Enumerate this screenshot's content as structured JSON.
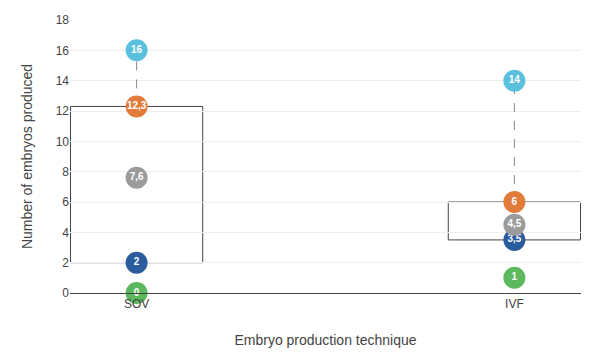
{
  "chart_data": {
    "type": "box",
    "xlabel": "Embryo production technique",
    "ylabel": "Number of embryos produced",
    "categories": [
      "SOV",
      "IVF"
    ],
    "box": {
      "q1": [
        2,
        3.5
      ],
      "q3": [
        12.3,
        6
      ],
      "max": [
        16,
        14
      ]
    },
    "series": [
      {
        "color": "#5cb85c",
        "values": [
          0,
          1
        ],
        "value_labels": [
          "0",
          "1"
        ]
      },
      {
        "color": "#2b5c9e",
        "values": [
          2,
          3.5
        ],
        "value_labels": [
          "2",
          "3,5"
        ]
      },
      {
        "color": "#9b9b9b",
        "values": [
          7.6,
          4.5
        ],
        "value_labels": [
          "7,6",
          "4,5"
        ]
      },
      {
        "color": "#e07b39",
        "values": [
          12.3,
          6
        ],
        "value_labels": [
          "12,3",
          "6"
        ]
      },
      {
        "color": "#5bc0de",
        "values": [
          16,
          14
        ],
        "value_labels": [
          "16",
          "14"
        ]
      }
    ],
    "data_labels": true,
    "ylim": [
      0,
      18
    ],
    "yticks": [
      0,
      2,
      4,
      6,
      8,
      10,
      12,
      14,
      16,
      18
    ],
    "grid": true
  }
}
